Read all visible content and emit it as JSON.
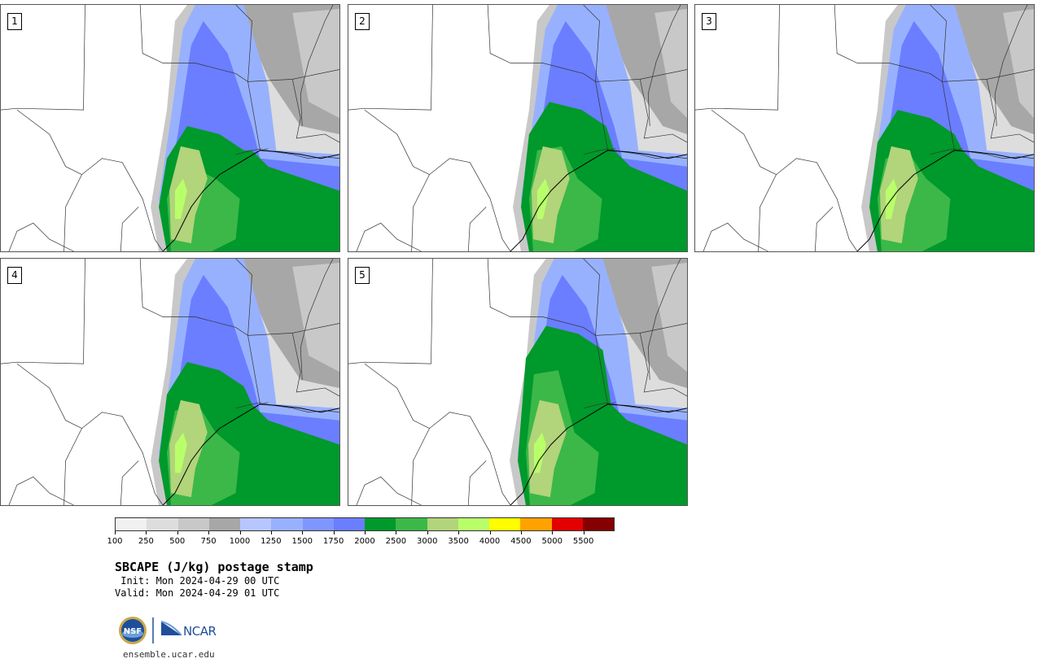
{
  "panels": [
    {
      "label": "1"
    },
    {
      "label": "2"
    },
    {
      "label": "3"
    },
    {
      "label": "4"
    },
    {
      "label": "5"
    }
  ],
  "colorbar": {
    "colors": [
      "#f1f1f1",
      "#dddddd",
      "#c8c8c8",
      "#a7a7a7",
      "#b7c6ff",
      "#98b1ff",
      "#7f96ff",
      "#6a7eff",
      "#00992b",
      "#3bb848",
      "#b2d47b",
      "#b8ff6a",
      "#fffd00",
      "#ffa200",
      "#e30000",
      "#850000"
    ],
    "tick_labels": [
      "100",
      "250",
      "500",
      "750",
      "1000",
      "1250",
      "1500",
      "1750",
      "2000",
      "2500",
      "3000",
      "3500",
      "4000",
      "4500",
      "5000",
      "5500"
    ]
  },
  "title": "SBCAPE (J/kg) postage stamp",
  "init": " Init: Mon 2024-04-29 00 UTC",
  "valid": "Valid: Mon 2024-04-29 01 UTC",
  "logos": {
    "nsf": "NSF",
    "ncar": "NCAR"
  },
  "footer_url": "ensemble.ucar.edu"
}
